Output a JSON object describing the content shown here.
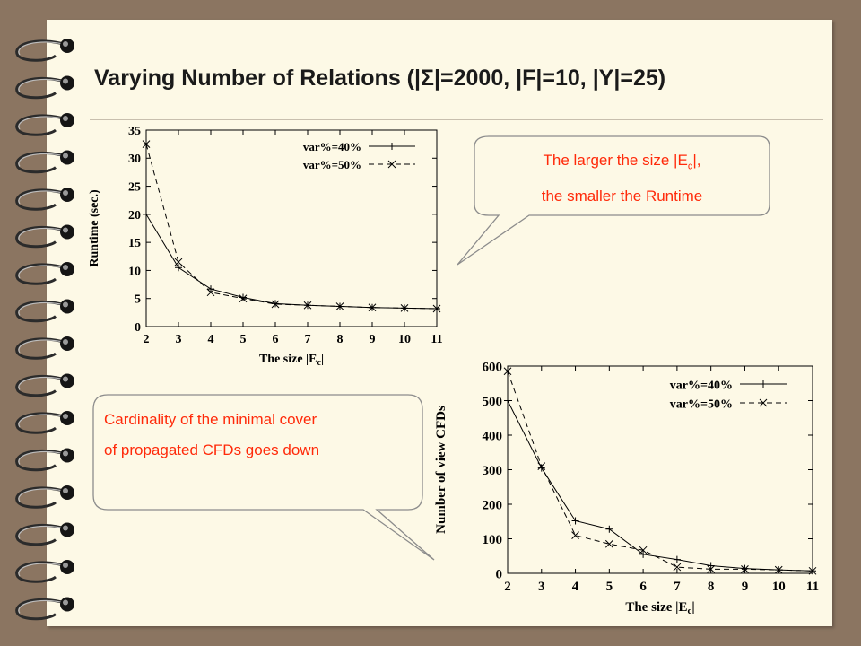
{
  "slide": {
    "title_prefix": "Varying Number of Relations (|",
    "title_symbol": "Σ",
    "title_suffix": "|=2000, |F|=10, |Y|=25)"
  },
  "callouts": {
    "top_line1_prefix": "The larger the size |E",
    "top_line1_sub": "c",
    "top_line1_suffix": "|,",
    "top_line2": "the smaller the Runtime",
    "bottom_line1": "Cardinality of the minimal cover",
    "bottom_line2": "of propagated CFDs goes down"
  },
  "colors": {
    "background": "#8b7561",
    "paper": "#fdf9e6",
    "callout_text": "#ff2a0a",
    "callout_border": "#8c8c8c"
  },
  "chart_data": [
    {
      "type": "line",
      "xlabel_prefix": "The size |E",
      "xlabel_sub": "c",
      "xlabel_suffix": "|",
      "ylabel": "Runtime (sec.)",
      "x": [
        2,
        3,
        4,
        5,
        6,
        7,
        8,
        9,
        10,
        11
      ],
      "xlim": [
        2,
        11
      ],
      "ylim": [
        0,
        35
      ],
      "yticks": [
        0,
        5,
        10,
        15,
        20,
        25,
        30,
        35
      ],
      "legend_position": "top-right",
      "series": [
        {
          "name": "var%=40%",
          "marker": "plus",
          "dash": "solid",
          "values": [
            20,
            10.5,
            6.7,
            5.2,
            4.1,
            3.8,
            3.6,
            3.4,
            3.3,
            3.2
          ]
        },
        {
          "name": "var%=50%",
          "marker": "cross",
          "dash": "dashed",
          "values": [
            32.5,
            11.5,
            6.1,
            5.0,
            4.0,
            3.8,
            3.6,
            3.4,
            3.3,
            3.2
          ]
        }
      ]
    },
    {
      "type": "line",
      "xlabel_prefix": "The size |E",
      "xlabel_sub": "c",
      "xlabel_suffix": "|",
      "ylabel": "Number of view CFDs",
      "x": [
        2,
        3,
        4,
        5,
        6,
        7,
        8,
        9,
        10,
        11
      ],
      "xlim": [
        2,
        11
      ],
      "ylim": [
        0,
        600
      ],
      "yticks": [
        0,
        100,
        200,
        300,
        400,
        500,
        600
      ],
      "legend_position": "top-right",
      "series": [
        {
          "name": "var%=40%",
          "marker": "plus",
          "dash": "solid",
          "values": [
            500,
            305,
            152,
            128,
            55,
            40,
            22,
            14,
            10,
            7
          ]
        },
        {
          "name": "var%=50%",
          "marker": "cross",
          "dash": "dashed",
          "values": [
            585,
            310,
            110,
            85,
            67,
            18,
            12,
            12,
            10,
            7
          ]
        }
      ]
    }
  ]
}
